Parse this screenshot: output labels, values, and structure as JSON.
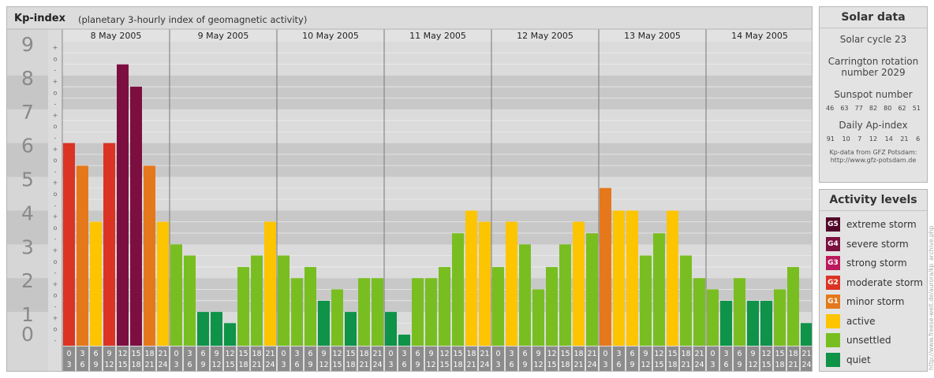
{
  "chart_data": {
    "type": "bar",
    "title": "Kp-index",
    "subtitle": "(planetary 3-hourly index of geomagnetic activity)",
    "ylim": [
      0,
      9
    ],
    "y_ticks": [
      "0",
      "1",
      "2",
      "3",
      "4",
      "5",
      "6",
      "7",
      "8",
      "9"
    ],
    "minor_marks": [
      "-",
      "o",
      "+"
    ],
    "days": [
      "8 May 2005",
      "9 May 2005",
      "10 May 2005",
      "11 May 2005",
      "12 May 2005",
      "13 May 2005",
      "14 May 2005"
    ],
    "interval_start": [
      "0",
      "3",
      "6",
      "9",
      "12",
      "15",
      "18",
      "21"
    ],
    "interval_end": [
      "3",
      "6",
      "9",
      "12",
      "15",
      "18",
      "21",
      "24"
    ],
    "values": [
      [
        6.0,
        5.33,
        3.67,
        6.0,
        8.33,
        7.67,
        5.33,
        3.67
      ],
      [
        3.0,
        2.67,
        1.0,
        1.0,
        0.67,
        2.33,
        2.67,
        3.67
      ],
      [
        2.67,
        2.0,
        2.33,
        1.33,
        1.67,
        1.0,
        2.0,
        2.0
      ],
      [
        1.0,
        0.33,
        2.0,
        2.0,
        2.33,
        3.33,
        4.0,
        3.67
      ],
      [
        2.33,
        3.67,
        3.0,
        1.67,
        2.33,
        3.0,
        3.67,
        3.33
      ],
      [
        4.67,
        4.0,
        4.0,
        2.67,
        3.33,
        4.0,
        2.67,
        2.0
      ],
      [
        1.67,
        1.33,
        2.0,
        1.33,
        1.33,
        1.67,
        2.33,
        0.67
      ]
    ],
    "colors": {
      "quiet": "#0e9348",
      "unsettled": "#79be21",
      "active": "#fdc400",
      "minor_storm": "#e5781b",
      "moderate_storm": "#db3424",
      "strong_storm": "#bb1a5c",
      "severe_storm": "#7c0f40",
      "extreme_storm": "#52062a"
    }
  },
  "solar": {
    "title": "Solar data",
    "cycle": "Solar cycle 23",
    "carrington_line1": "Carrington rotation",
    "carrington_line2": "number 2029",
    "sunspot_title": "Sunspot number",
    "sunspots": [
      "46",
      "63",
      "77",
      "82",
      "80",
      "62",
      "51"
    ],
    "ap_title": "Daily Ap-index",
    "ap": [
      "91",
      "10",
      "7",
      "12",
      "14",
      "21",
      "6"
    ],
    "source_line1": "Kp-data from GFZ Potsdam:",
    "source_line2": "http://www.gfz-potsdam.de"
  },
  "levels": {
    "title": "Activity levels",
    "items": [
      {
        "code": "G5",
        "label": "extreme storm",
        "color": "#52062a"
      },
      {
        "code": "G4",
        "label": "severe storm",
        "color": "#7c0f40"
      },
      {
        "code": "G3",
        "label": "strong storm",
        "color": "#bb1a5c"
      },
      {
        "code": "G2",
        "label": "moderate storm",
        "color": "#db3424"
      },
      {
        "code": "G1",
        "label": "minor storm",
        "color": "#e5781b"
      },
      {
        "code": "",
        "label": "active",
        "color": "#fdc400"
      },
      {
        "code": "",
        "label": "unsettled",
        "color": "#79be21"
      },
      {
        "code": "",
        "label": "quiet",
        "color": "#0e9348"
      }
    ]
  },
  "watermark": "http://www.freese-welt.de/aurora/kp_archive.php"
}
